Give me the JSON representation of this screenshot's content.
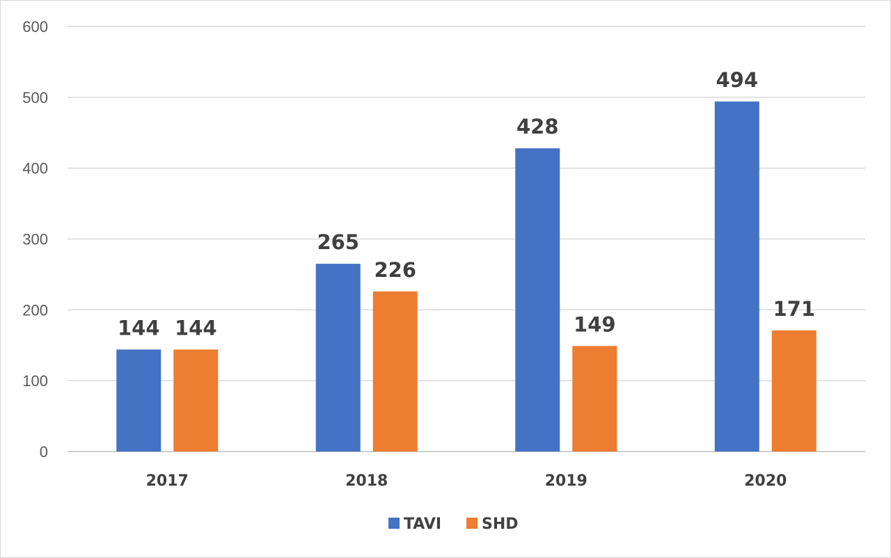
{
  "chart_data": {
    "type": "bar",
    "categories": [
      "2017",
      "2018",
      "2019",
      "2020"
    ],
    "series": [
      {
        "name": "TAVI",
        "values": [
          144,
          265,
          428,
          494
        ],
        "color": "#4472C4"
      },
      {
        "name": "SHD",
        "values": [
          144,
          226,
          149,
          171
        ],
        "color": "#ED7D31"
      }
    ],
    "ylim": [
      0,
      600
    ],
    "yticks": [
      0,
      100,
      200,
      300,
      400,
      500,
      600
    ],
    "grid": true,
    "legend": "bottom-center",
    "data_labels": true
  }
}
